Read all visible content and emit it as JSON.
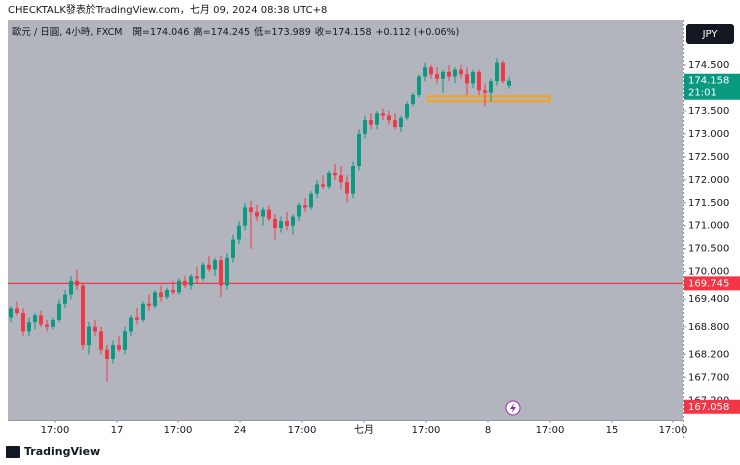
{
  "chart_data": {
    "type": "candlestick",
    "title": "CHECKTALK發表於TradingView.com，七月 09, 2024 08:38 UTC+8",
    "symbol_info": "歐元 / 日圓, 4小時, FXCM",
    "ohlc_labels": [
      "開=",
      "高=",
      "低=",
      "收="
    ],
    "change": "+0.112 (+0.06%)",
    "currency": "JPY",
    "countdown": "21:01",
    "footer": "TradingView",
    "up_color": "#089981",
    "down_color": "#f23645",
    "open": [
      169.0,
      169.2,
      169.1,
      168.7,
      168.9,
      169.05,
      168.85,
      168.8,
      168.95,
      169.3,
      169.5,
      169.8,
      169.7,
      168.4,
      168.8,
      168.7,
      168.3,
      168.1,
      168.4,
      168.3,
      168.7,
      169.0,
      168.95,
      169.3,
      169.25,
      169.55,
      169.45,
      169.6,
      169.55,
      169.8,
      169.7,
      169.9,
      169.85,
      170.15,
      170.05,
      170.25,
      169.7,
      170.3,
      170.7,
      171.0,
      171.4,
      171.3,
      171.2,
      171.35,
      171.15,
      170.95,
      171.1,
      171.0,
      171.2,
      171.45,
      171.4,
      171.7,
      171.9,
      171.85,
      172.15,
      172.1,
      171.95,
      171.7,
      172.3,
      173.0,
      173.3,
      173.2,
      173.45,
      173.4,
      173.3,
      173.15,
      173.35,
      173.65,
      173.85,
      174.25,
      174.45,
      174.3,
      174.2,
      174.35,
      174.25,
      174.4,
      174.3,
      174.1,
      174.35,
      173.95,
      173.9,
      174.15,
      174.55,
      174.046
    ],
    "high": [
      169.25,
      169.35,
      169.2,
      169.0,
      169.1,
      169.15,
      168.95,
      169.0,
      169.4,
      169.6,
      169.9,
      170.05,
      169.75,
      168.9,
      168.95,
      168.8,
      168.4,
      168.5,
      168.6,
      168.8,
      169.05,
      169.2,
      169.35,
      169.5,
      169.6,
      169.7,
      169.65,
      169.8,
      169.85,
      169.9,
      169.95,
      170.1,
      170.2,
      170.35,
      170.3,
      170.35,
      170.4,
      170.8,
      171.1,
      171.5,
      171.55,
      171.45,
      171.4,
      171.45,
      171.25,
      171.2,
      171.3,
      171.25,
      171.5,
      171.6,
      171.75,
      172.0,
      172.1,
      172.2,
      172.35,
      172.3,
      172.1,
      172.4,
      173.1,
      173.4,
      173.45,
      173.5,
      173.55,
      173.5,
      173.45,
      173.4,
      173.7,
      173.9,
      174.3,
      174.55,
      174.5,
      174.45,
      174.4,
      174.5,
      174.45,
      174.5,
      174.45,
      174.4,
      174.4,
      174.1,
      174.2,
      174.65,
      174.6,
      174.245
    ],
    "low": [
      168.9,
      169.05,
      168.6,
      168.6,
      168.75,
      168.8,
      168.7,
      168.75,
      168.9,
      169.2,
      169.4,
      169.6,
      168.3,
      168.2,
      168.6,
      168.2,
      167.6,
      168.0,
      168.25,
      168.2,
      168.6,
      168.85,
      168.9,
      169.15,
      169.2,
      169.35,
      169.4,
      169.5,
      169.5,
      169.65,
      169.6,
      169.75,
      169.8,
      170.0,
      169.9,
      169.45,
      169.6,
      170.2,
      170.6,
      170.9,
      170.5,
      171.1,
      171.0,
      171.1,
      170.7,
      170.85,
      170.9,
      170.8,
      171.1,
      171.3,
      171.35,
      171.6,
      171.8,
      171.8,
      172.0,
      171.8,
      171.5,
      171.6,
      172.2,
      172.9,
      173.1,
      173.1,
      173.3,
      173.2,
      173.1,
      173.05,
      173.3,
      173.6,
      173.8,
      174.15,
      174.2,
      174.1,
      173.9,
      174.15,
      174.1,
      174.2,
      173.85,
      174.0,
      173.85,
      173.6,
      173.7,
      174.05,
      174.1,
      173.989
    ],
    "close": [
      169.2,
      169.1,
      168.7,
      168.9,
      169.05,
      168.85,
      168.8,
      168.95,
      169.3,
      169.5,
      169.8,
      169.7,
      168.4,
      168.8,
      168.7,
      168.3,
      168.1,
      168.4,
      168.3,
      168.7,
      169.0,
      168.95,
      169.3,
      169.25,
      169.55,
      169.45,
      169.6,
      169.55,
      169.8,
      169.7,
      169.9,
      169.85,
      170.15,
      170.05,
      170.25,
      169.7,
      170.3,
      170.7,
      171.0,
      171.4,
      171.3,
      171.2,
      171.35,
      171.15,
      170.95,
      171.1,
      171.0,
      171.2,
      171.45,
      171.4,
      171.7,
      171.9,
      171.85,
      172.15,
      172.1,
      171.95,
      171.7,
      172.3,
      173.0,
      173.3,
      173.2,
      173.45,
      173.4,
      173.3,
      173.15,
      173.35,
      173.65,
      173.85,
      174.25,
      174.45,
      174.3,
      174.2,
      174.35,
      174.25,
      174.4,
      174.3,
      174.1,
      174.35,
      173.95,
      173.9,
      174.15,
      174.55,
      174.15,
      174.158
    ],
    "hline": {
      "value": 169.745,
      "color": "#f23645"
    },
    "price_marker": {
      "value": 167.058,
      "color": "#f23645"
    },
    "box": {
      "x": [
        69.5,
        89.8
      ],
      "y": [
        173.72,
        173.82
      ],
      "color": "#f7a21b"
    },
    "xlim": [
      -0.5,
      112
    ],
    "xticks": [
      {
        "value": 7.33,
        "label": "17:00"
      },
      {
        "value": 17.67,
        "label": "17"
      },
      {
        "value": 27.83,
        "label": "17:00"
      },
      {
        "value": 38.17,
        "label": "24"
      },
      {
        "value": 48.5,
        "label": "17:00"
      },
      {
        "value": 58.83,
        "label": "七月"
      },
      {
        "value": 69.17,
        "label": "17:00"
      },
      {
        "value": 79.5,
        "label": "8"
      },
      {
        "value": 89.83,
        "label": "17:00"
      },
      {
        "value": 100.17,
        "label": "15"
      },
      {
        "value": 110.33,
        "label": "17:00"
      }
    ],
    "ylim": [
      166.77,
      175.48
    ],
    "yticks": [
      {
        "value": 174.5,
        "label": "174.500"
      },
      {
        "value": 174,
        "label": "174.000"
      },
      {
        "value": 173.5,
        "label": "173.500"
      },
      {
        "value": 173,
        "label": "173.000"
      },
      {
        "value": 172.5,
        "label": "172.500"
      },
      {
        "value": 172,
        "label": "172.000"
      },
      {
        "value": 171.5,
        "label": "171.500"
      },
      {
        "value": 171,
        "label": "171.000"
      },
      {
        "value": 170.5,
        "label": "170.500"
      },
      {
        "value": 170,
        "label": "170.000"
      },
      {
        "value": 169.4,
        "label": "169.400"
      },
      {
        "value": 168.8,
        "label": "168.800"
      },
      {
        "value": 168.2,
        "label": "168.200"
      },
      {
        "value": 167.7,
        "label": "167.700"
      },
      {
        "value": 167.2,
        "label": "167.200"
      }
    ]
  }
}
